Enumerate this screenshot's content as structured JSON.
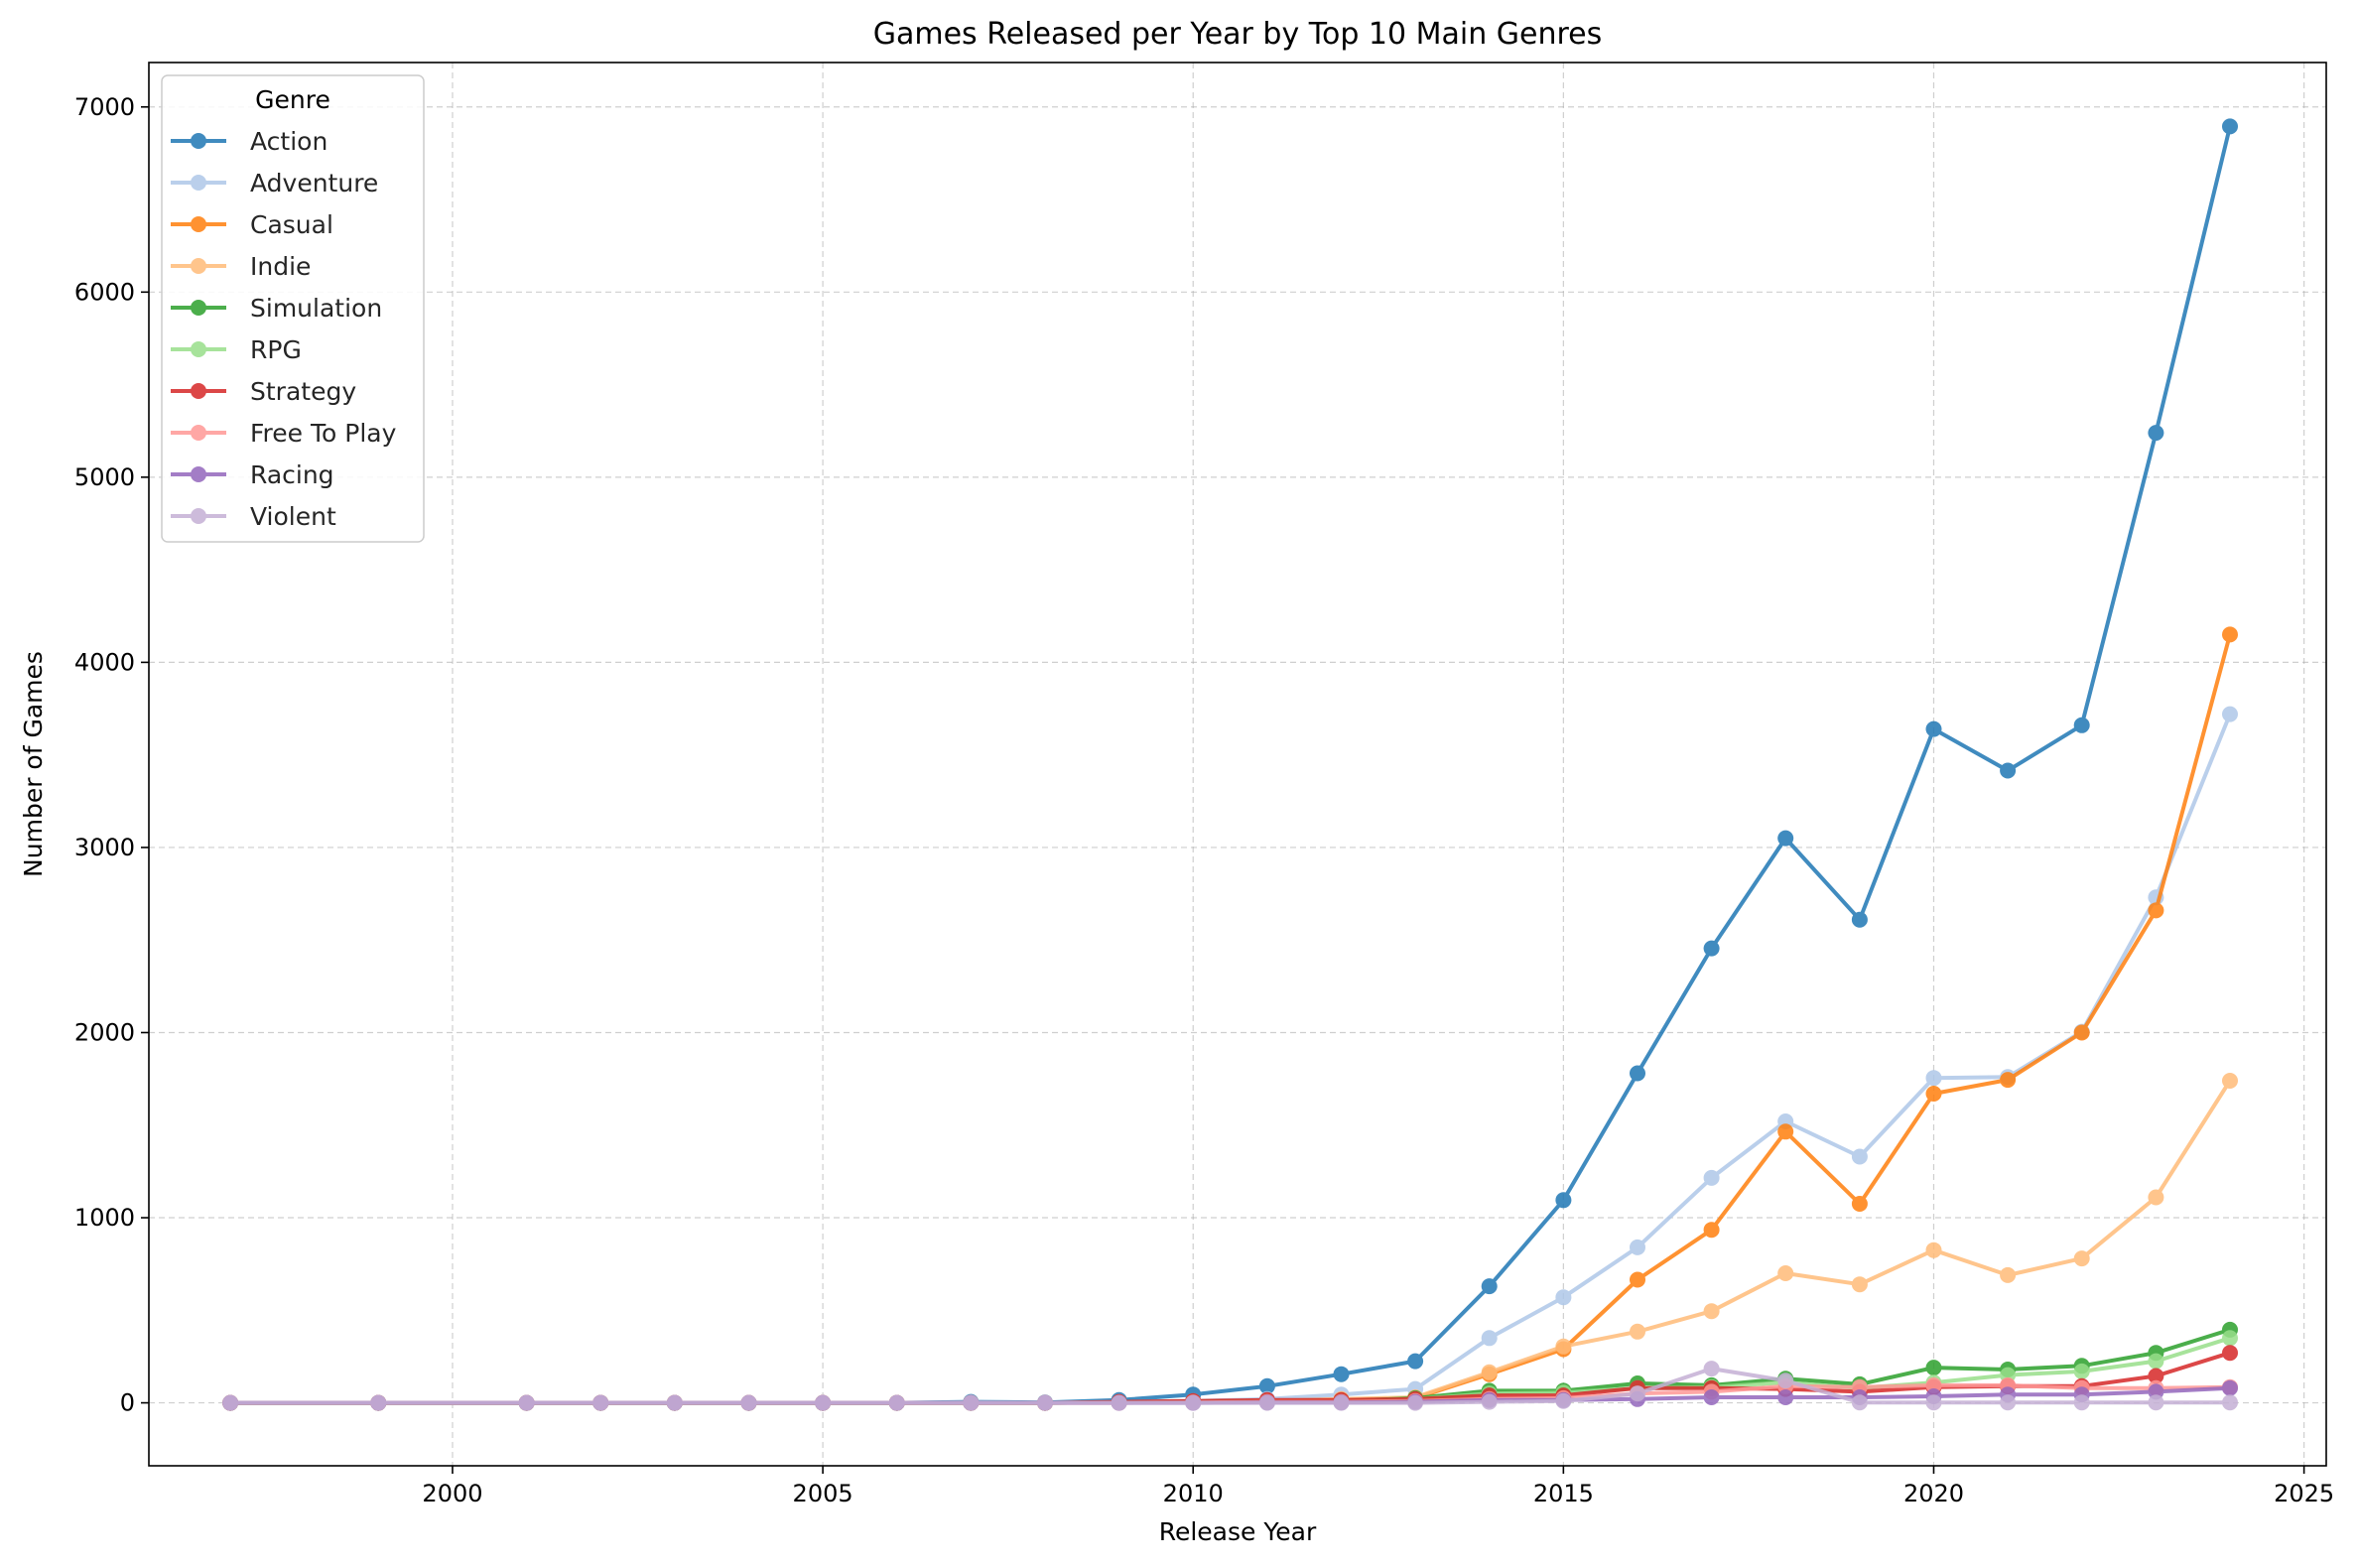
{
  "chart_data": {
    "type": "line",
    "title": "Games Released per Year by Top 10 Main Genres",
    "xlabel": "Release Year",
    "ylabel": "Number of Games",
    "xlim": [
      1995.9,
      2025.3
    ],
    "ylim": [
      -340,
      7240
    ],
    "xticks": [
      2000,
      2005,
      2010,
      2015,
      2020,
      2025
    ],
    "yticks": [
      0,
      1000,
      2000,
      3000,
      4000,
      5000,
      6000,
      7000
    ],
    "grid": true,
    "legend": {
      "title": "Genre",
      "placement": "upper-left"
    },
    "series": [
      {
        "name": "Action",
        "color": "#1f77b4",
        "x": [
          1997,
          1999,
          2001,
          2002,
          2003,
          2004,
          2005,
          2006,
          2007,
          2008,
          2009,
          2010,
          2011,
          2012,
          2013,
          2014,
          2015,
          2016,
          2017,
          2018,
          2019,
          2020,
          2021,
          2022,
          2023,
          2024
        ],
        "y": [
          0,
          0,
          0,
          0,
          0,
          0,
          0,
          0,
          5,
          2,
          15,
          45,
          90,
          155,
          225,
          630,
          1095,
          1780,
          2455,
          3050,
          2610,
          3640,
          3415,
          3660,
          5240,
          6895
        ]
      },
      {
        "name": "Adventure",
        "color": "#aec7e8",
        "x": [
          1997,
          1999,
          2001,
          2002,
          2003,
          2004,
          2005,
          2006,
          2007,
          2008,
          2009,
          2010,
          2011,
          2012,
          2013,
          2014,
          2015,
          2016,
          2017,
          2018,
          2019,
          2020,
          2021,
          2022,
          2023,
          2024
        ],
        "y": [
          0,
          0,
          0,
          0,
          0,
          0,
          0,
          0,
          2,
          0,
          5,
          10,
          20,
          45,
          75,
          350,
          570,
          840,
          1215,
          1520,
          1330,
          1755,
          1760,
          2005,
          2730,
          3720
        ]
      },
      {
        "name": "Casual",
        "color": "#ff7f0e",
        "x": [
          1997,
          1999,
          2001,
          2002,
          2003,
          2004,
          2005,
          2006,
          2007,
          2008,
          2009,
          2010,
          2011,
          2012,
          2013,
          2014,
          2015,
          2016,
          2017,
          2018,
          2019,
          2020,
          2021,
          2022,
          2023,
          2024
        ],
        "y": [
          0,
          0,
          0,
          0,
          0,
          0,
          0,
          0,
          0,
          0,
          2,
          5,
          10,
          15,
          25,
          155,
          290,
          665,
          935,
          1465,
          1075,
          1670,
          1745,
          2000,
          2660,
          4150
        ]
      },
      {
        "name": "Indie",
        "color": "#ffbb78",
        "x": [
          1997,
          1999,
          2001,
          2002,
          2003,
          2004,
          2005,
          2006,
          2007,
          2008,
          2009,
          2010,
          2011,
          2012,
          2013,
          2014,
          2015,
          2016,
          2017,
          2018,
          2019,
          2020,
          2021,
          2022,
          2023,
          2024
        ],
        "y": [
          0,
          0,
          0,
          0,
          0,
          0,
          0,
          0,
          0,
          0,
          2,
          5,
          10,
          20,
          30,
          165,
          305,
          385,
          495,
          700,
          640,
          825,
          690,
          780,
          1110,
          1740
        ]
      },
      {
        "name": "Simulation",
        "color": "#2ca02c",
        "x": [
          1997,
          1999,
          2001,
          2002,
          2003,
          2004,
          2005,
          2006,
          2007,
          2008,
          2009,
          2010,
          2011,
          2012,
          2013,
          2014,
          2015,
          2016,
          2017,
          2018,
          2019,
          2020,
          2021,
          2022,
          2023,
          2024
        ],
        "y": [
          0,
          0,
          0,
          0,
          0,
          0,
          0,
          0,
          0,
          0,
          2,
          5,
          8,
          10,
          25,
          65,
          65,
          105,
          95,
          130,
          100,
          190,
          180,
          200,
          270,
          395
        ]
      },
      {
        "name": "RPG",
        "color": "#98df8a",
        "x": [
          1997,
          1999,
          2001,
          2002,
          2003,
          2004,
          2005,
          2006,
          2007,
          2008,
          2009,
          2010,
          2011,
          2012,
          2013,
          2014,
          2015,
          2016,
          2017,
          2018,
          2019,
          2020,
          2021,
          2022,
          2023,
          2024
        ],
        "y": [
          0,
          0,
          0,
          0,
          0,
          0,
          0,
          0,
          0,
          0,
          2,
          5,
          8,
          10,
          20,
          50,
          55,
          80,
          85,
          110,
          80,
          110,
          150,
          170,
          225,
          350
        ]
      },
      {
        "name": "Strategy",
        "color": "#d62728",
        "x": [
          1997,
          1999,
          2001,
          2002,
          2003,
          2004,
          2005,
          2006,
          2007,
          2008,
          2009,
          2010,
          2011,
          2012,
          2013,
          2014,
          2015,
          2016,
          2017,
          2018,
          2019,
          2020,
          2021,
          2022,
          2023,
          2024
        ],
        "y": [
          0,
          0,
          0,
          0,
          0,
          0,
          0,
          0,
          0,
          0,
          5,
          10,
          15,
          15,
          20,
          40,
          40,
          80,
          80,
          75,
          60,
          85,
          90,
          90,
          145,
          270
        ]
      },
      {
        "name": "Free To Play",
        "color": "#ff9896",
        "x": [
          1997,
          1999,
          2001,
          2002,
          2003,
          2004,
          2005,
          2006,
          2007,
          2008,
          2009,
          2010,
          2011,
          2012,
          2013,
          2014,
          2015,
          2016,
          2017,
          2018,
          2019,
          2020,
          2021,
          2022,
          2023,
          2024
        ],
        "y": [
          0,
          0,
          0,
          0,
          0,
          0,
          0,
          0,
          0,
          0,
          0,
          2,
          5,
          5,
          10,
          20,
          25,
          50,
          60,
          90,
          85,
          95,
          95,
          80,
          80,
          85
        ]
      },
      {
        "name": "Racing",
        "color": "#9467bd",
        "x": [
          1997,
          1999,
          2001,
          2002,
          2003,
          2004,
          2005,
          2006,
          2007,
          2008,
          2009,
          2010,
          2011,
          2012,
          2013,
          2014,
          2015,
          2016,
          2017,
          2018,
          2019,
          2020,
          2021,
          2022,
          2023,
          2024
        ],
        "y": [
          0,
          0,
          0,
          0,
          0,
          0,
          0,
          0,
          0,
          0,
          0,
          0,
          2,
          2,
          5,
          15,
          15,
          20,
          30,
          30,
          30,
          35,
          45,
          45,
          60,
          80
        ]
      },
      {
        "name": "Violent",
        "color": "#c5b0d5",
        "x": [
          1997,
          1999,
          2001,
          2002,
          2003,
          2004,
          2005,
          2006,
          2007,
          2008,
          2009,
          2010,
          2011,
          2012,
          2013,
          2014,
          2015,
          2016,
          2017,
          2018,
          2019,
          2020,
          2021,
          2022,
          2023,
          2024
        ],
        "y": [
          0,
          0,
          0,
          0,
          0,
          0,
          0,
          0,
          0,
          0,
          0,
          0,
          0,
          0,
          0,
          5,
          10,
          50,
          185,
          120,
          2,
          2,
          2,
          2,
          2,
          2
        ]
      }
    ]
  }
}
